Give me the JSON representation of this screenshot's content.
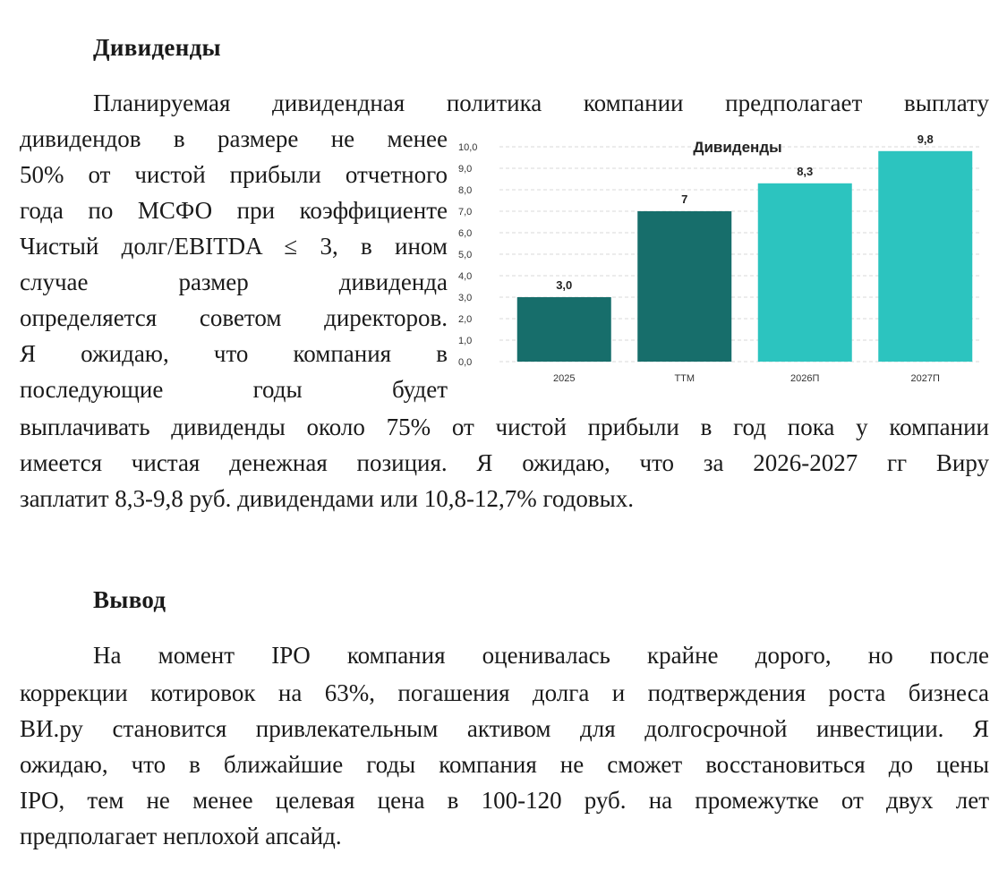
{
  "sections": {
    "dividends": {
      "heading": "Дивиденды",
      "lines": [
        "Планируемая дивидендная политика компании предполагает выплату",
        "дивидендов в размере не менее",
        "50% от чистой прибыли отчетного",
        "года по МСФО при коэффициенте",
        "Чистый долг/EBITDA ≤ 3, в ином",
        "случае размер дивиденда",
        "определяется советом директоров.",
        "Я ожидаю, что компания в",
        "последующие годы будет",
        "выплачивать дивиденды около 75% от чистой прибыли в год пока у компании",
        "имеется чистая денежная позиция. Я ожидаю, что за 2026-2027 гг Виру",
        "заплатит 8,3-9,8 руб. дивидендами или 10,8-12,7% годовых."
      ]
    },
    "conclusion": {
      "heading": "Вывод",
      "lines": [
        "На момент IPO компания оценивалась крайне дорого, но после",
        "коррекции котировок на 63%, погашения долга и подтверждения роста бизнеса",
        "ВИ.ру становится привлекательным активом для долгосрочной инвестиции. Я",
        "ожидаю, что в ближайшие годы компания не сможет восстановиться до цены",
        "IPO, тем не менее целевая цена в 100-120 руб. на промежутке от двух лет",
        "предполагает неплохой апсайд."
      ]
    }
  },
  "chart_data": {
    "type": "bar",
    "title": "Дивиденды",
    "categories": [
      "2025",
      "TTM",
      "2026П",
      "2027П"
    ],
    "values": [
      3.0,
      7,
      8.3,
      9.8
    ],
    "value_labels": [
      "3,0",
      "7",
      "8,3",
      "9,8"
    ],
    "bar_colors": [
      "#176e6b",
      "#176e6b",
      "#2cc4bf",
      "#2cc4bf"
    ],
    "yticks": [
      "0,0",
      "1,0",
      "2,0",
      "3,0",
      "4,0",
      "5,0",
      "6,0",
      "7,0",
      "8,0",
      "9,0",
      "10,0"
    ],
    "ylim": [
      0,
      10
    ],
    "grid": true,
    "xlabel": "",
    "ylabel": ""
  }
}
